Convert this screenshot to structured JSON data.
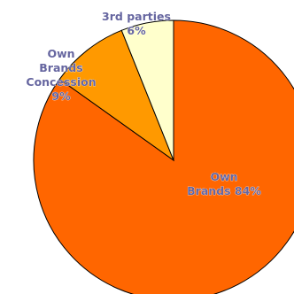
{
  "chart_data": {
    "type": "pie",
    "slices": [
      {
        "name": "Own Brands",
        "value": 84,
        "value_label": "84%",
        "label_lines": [
          "Own",
          "Brands 84%"
        ],
        "color": "#ff6600"
      },
      {
        "name": "Own Brands Concession",
        "value": 9,
        "value_label": "9%",
        "label_lines": [
          "Own",
          "Brands",
          "Concession",
          "9%"
        ],
        "color": "#ff9900"
      },
      {
        "name": "3rd parties",
        "value": 6,
        "value_label": "6%",
        "label_lines": [
          "3rd parties",
          "6%"
        ],
        "color": "#ffffcc"
      }
    ],
    "label_color": "#6666a0",
    "outline_color": "#000000",
    "background": "#ffffff",
    "legend": "none"
  }
}
